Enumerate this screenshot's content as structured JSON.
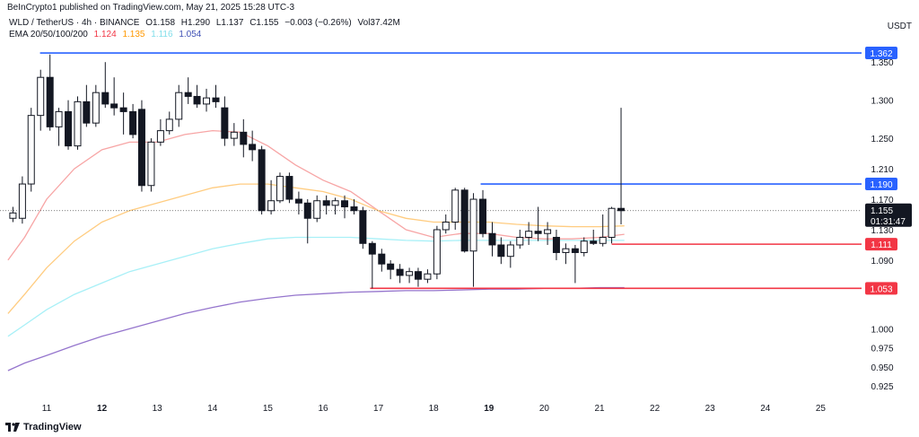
{
  "header": {
    "published": "BeInCrypto1 published on TradingView.com, May 21, 2025 15:28 UTC-3",
    "currency": "USDT"
  },
  "legend": {
    "symbol": "WLD / TetherUS · 4h · BINANCE",
    "open": "O1.158",
    "high": "H1.290",
    "low": "L1.137",
    "close": "C1.155",
    "change": "−0.003 (−0.26%)",
    "volume": "Vol37.42M",
    "ema_label": "EMA 20/50/100/200",
    "ema_values": [
      {
        "value": "1.124",
        "color": "#f23645"
      },
      {
        "value": "1.135",
        "color": "#ff9800"
      },
      {
        "value": "1.116",
        "color": "#80deea"
      },
      {
        "value": "1.054",
        "color": "#3f51b5"
      }
    ]
  },
  "footer": {
    "brand": "TradingView",
    "logo_icon": "tradingview-logo-icon"
  },
  "colors": {
    "up": "#ffffff",
    "down": "#131722",
    "wick": "#131722",
    "ema20": "#f7a5a5",
    "ema50": "#ffcc80",
    "ema100": "#a8f0f7",
    "ema200": "#9575cd",
    "level_blue": "#2962ff",
    "level_red": "#f23645"
  },
  "chart_data": {
    "type": "candlestick",
    "ylim": [
      0.905,
      1.375
    ],
    "price_axis_labels": [
      "1.350",
      "1.300",
      "1.250",
      "1.210",
      "1.170",
      "1.130",
      "1.090",
      "1.050",
      "1.000",
      "0.975",
      "0.950",
      "0.925"
    ],
    "time_axis_labels": [
      {
        "label": "11",
        "x": 11,
        "bold": false
      },
      {
        "label": "12",
        "x": 12,
        "bold": true
      },
      {
        "label": "13",
        "x": 13,
        "bold": false
      },
      {
        "label": "14",
        "x": 14,
        "bold": false
      },
      {
        "label": "15",
        "x": 15,
        "bold": false
      },
      {
        "label": "16",
        "x": 16,
        "bold": false
      },
      {
        "label": "17",
        "x": 17,
        "bold": false
      },
      {
        "label": "18",
        "x": 18,
        "bold": false
      },
      {
        "label": "19",
        "x": 19,
        "bold": true
      },
      {
        "label": "20",
        "x": 20,
        "bold": false
      },
      {
        "label": "21",
        "x": 21,
        "bold": false
      },
      {
        "label": "22",
        "x": 22,
        "bold": false
      },
      {
        "label": "23",
        "x": 23,
        "bold": false
      },
      {
        "label": "24",
        "x": 24,
        "bold": false
      },
      {
        "label": "25",
        "x": 25,
        "bold": false
      }
    ],
    "xlim": [
      10.3,
      25.75
    ],
    "candles": [
      {
        "t": 10.39,
        "o": 1.145,
        "h": 1.16,
        "l": 1.14,
        "c": 1.152
      },
      {
        "t": 10.56,
        "o": 1.145,
        "h": 1.2,
        "l": 1.138,
        "c": 1.19
      },
      {
        "t": 10.72,
        "o": 1.19,
        "h": 1.29,
        "l": 1.18,
        "c": 1.28
      },
      {
        "t": 10.89,
        "o": 1.28,
        "h": 1.34,
        "l": 1.26,
        "c": 1.33
      },
      {
        "t": 11.06,
        "o": 1.33,
        "h": 1.36,
        "l": 1.26,
        "c": 1.265
      },
      {
        "t": 11.22,
        "o": 1.265,
        "h": 1.29,
        "l": 1.24,
        "c": 1.285
      },
      {
        "t": 11.39,
        "o": 1.285,
        "h": 1.3,
        "l": 1.235,
        "c": 1.24
      },
      {
        "t": 11.56,
        "o": 1.24,
        "h": 1.305,
        "l": 1.235,
        "c": 1.298
      },
      {
        "t": 11.72,
        "o": 1.298,
        "h": 1.32,
        "l": 1.265,
        "c": 1.27
      },
      {
        "t": 11.89,
        "o": 1.27,
        "h": 1.32,
        "l": 1.265,
        "c": 1.31
      },
      {
        "t": 12.06,
        "o": 1.31,
        "h": 1.35,
        "l": 1.29,
        "c": 1.295
      },
      {
        "t": 12.22,
        "o": 1.295,
        "h": 1.33,
        "l": 1.28,
        "c": 1.29
      },
      {
        "t": 12.39,
        "o": 1.29,
        "h": 1.31,
        "l": 1.255,
        "c": 1.285
      },
      {
        "t": 12.56,
        "o": 1.285,
        "h": 1.295,
        "l": 1.25,
        "c": 1.255
      },
      {
        "t": 12.72,
        "o": 1.288,
        "h": 1.3,
        "l": 1.18,
        "c": 1.188
      },
      {
        "t": 12.89,
        "o": 1.188,
        "h": 1.25,
        "l": 1.18,
        "c": 1.245
      },
      {
        "t": 13.06,
        "o": 1.245,
        "h": 1.275,
        "l": 1.24,
        "c": 1.26
      },
      {
        "t": 13.22,
        "o": 1.26,
        "h": 1.285,
        "l": 1.255,
        "c": 1.275
      },
      {
        "t": 13.39,
        "o": 1.275,
        "h": 1.32,
        "l": 1.265,
        "c": 1.31
      },
      {
        "t": 13.56,
        "o": 1.31,
        "h": 1.33,
        "l": 1.295,
        "c": 1.305
      },
      {
        "t": 13.72,
        "o": 1.305,
        "h": 1.32,
        "l": 1.29,
        "c": 1.295
      },
      {
        "t": 13.89,
        "o": 1.295,
        "h": 1.315,
        "l": 1.285,
        "c": 1.303
      },
      {
        "t": 14.06,
        "o": 1.303,
        "h": 1.32,
        "l": 1.29,
        "c": 1.298
      },
      {
        "t": 14.22,
        "o": 1.29,
        "h": 1.305,
        "l": 1.24,
        "c": 1.25
      },
      {
        "t": 14.39,
        "o": 1.25,
        "h": 1.27,
        "l": 1.24,
        "c": 1.258
      },
      {
        "t": 14.56,
        "o": 1.258,
        "h": 1.275,
        "l": 1.225,
        "c": 1.242
      },
      {
        "t": 14.72,
        "o": 1.242,
        "h": 1.26,
        "l": 1.22,
        "c": 1.235
      },
      {
        "t": 14.89,
        "o": 1.235,
        "h": 1.24,
        "l": 1.15,
        "c": 1.155
      },
      {
        "t": 15.06,
        "o": 1.155,
        "h": 1.195,
        "l": 1.15,
        "c": 1.168
      },
      {
        "t": 15.22,
        "o": 1.168,
        "h": 1.205,
        "l": 1.165,
        "c": 1.2
      },
      {
        "t": 15.39,
        "o": 1.2,
        "h": 1.205,
        "l": 1.165,
        "c": 1.17
      },
      {
        "t": 15.56,
        "o": 1.17,
        "h": 1.18,
        "l": 1.15,
        "c": 1.165
      },
      {
        "t": 15.72,
        "o": 1.165,
        "h": 1.17,
        "l": 1.112,
        "c": 1.145
      },
      {
        "t": 15.89,
        "o": 1.145,
        "h": 1.175,
        "l": 1.14,
        "c": 1.168
      },
      {
        "t": 16.06,
        "o": 1.168,
        "h": 1.175,
        "l": 1.15,
        "c": 1.162
      },
      {
        "t": 16.22,
        "o": 1.162,
        "h": 1.172,
        "l": 1.15,
        "c": 1.168
      },
      {
        "t": 16.39,
        "o": 1.168,
        "h": 1.175,
        "l": 1.145,
        "c": 1.16
      },
      {
        "t": 16.56,
        "o": 1.16,
        "h": 1.17,
        "l": 1.15,
        "c": 1.155
      },
      {
        "t": 16.72,
        "o": 1.155,
        "h": 1.16,
        "l": 1.105,
        "c": 1.112
      },
      {
        "t": 16.89,
        "o": 1.112,
        "h": 1.115,
        "l": 1.053,
        "c": 1.098
      },
      {
        "t": 17.06,
        "o": 1.098,
        "h": 1.105,
        "l": 1.075,
        "c": 1.085
      },
      {
        "t": 17.22,
        "o": 1.085,
        "h": 1.09,
        "l": 1.065,
        "c": 1.078
      },
      {
        "t": 17.39,
        "o": 1.078,
        "h": 1.085,
        "l": 1.06,
        "c": 1.07
      },
      {
        "t": 17.56,
        "o": 1.07,
        "h": 1.08,
        "l": 1.06,
        "c": 1.075
      },
      {
        "t": 17.72,
        "o": 1.075,
        "h": 1.08,
        "l": 1.055,
        "c": 1.065
      },
      {
        "t": 17.89,
        "o": 1.065,
        "h": 1.078,
        "l": 1.06,
        "c": 1.072
      },
      {
        "t": 18.06,
        "o": 1.072,
        "h": 1.135,
        "l": 1.065,
        "c": 1.13
      },
      {
        "t": 18.22,
        "o": 1.13,
        "h": 1.15,
        "l": 1.125,
        "c": 1.14
      },
      {
        "t": 18.39,
        "o": 1.14,
        "h": 1.185,
        "l": 1.13,
        "c": 1.182
      },
      {
        "t": 18.56,
        "o": 1.182,
        "h": 1.185,
        "l": 1.1,
        "c": 1.102
      },
      {
        "t": 18.72,
        "o": 1.102,
        "h": 1.178,
        "l": 1.055,
        "c": 1.17
      },
      {
        "t": 18.89,
        "o": 1.17,
        "h": 1.182,
        "l": 1.12,
        "c": 1.125
      },
      {
        "t": 19.06,
        "o": 1.125,
        "h": 1.14,
        "l": 1.095,
        "c": 1.11
      },
      {
        "t": 19.22,
        "o": 1.11,
        "h": 1.12,
        "l": 1.085,
        "c": 1.095
      },
      {
        "t": 19.39,
        "o": 1.095,
        "h": 1.115,
        "l": 1.08,
        "c": 1.11
      },
      {
        "t": 19.56,
        "o": 1.11,
        "h": 1.13,
        "l": 1.105,
        "c": 1.12
      },
      {
        "t": 19.72,
        "o": 1.12,
        "h": 1.14,
        "l": 1.11,
        "c": 1.128
      },
      {
        "t": 19.89,
        "o": 1.128,
        "h": 1.16,
        "l": 1.115,
        "c": 1.125
      },
      {
        "t": 20.06,
        "o": 1.125,
        "h": 1.14,
        "l": 1.11,
        "c": 1.13
      },
      {
        "t": 20.22,
        "o": 1.12,
        "h": 1.13,
        "l": 1.09,
        "c": 1.1
      },
      {
        "t": 20.39,
        "o": 1.1,
        "h": 1.112,
        "l": 1.085,
        "c": 1.105
      },
      {
        "t": 20.56,
        "o": 1.105,
        "h": 1.11,
        "l": 1.06,
        "c": 1.1
      },
      {
        "t": 20.72,
        "o": 1.1,
        "h": 1.12,
        "l": 1.095,
        "c": 1.115
      },
      {
        "t": 20.89,
        "o": 1.115,
        "h": 1.13,
        "l": 1.11,
        "c": 1.112
      },
      {
        "t": 21.06,
        "o": 1.112,
        "h": 1.15,
        "l": 1.108,
        "c": 1.12
      },
      {
        "t": 21.22,
        "o": 1.12,
        "h": 1.16,
        "l": 1.112,
        "c": 1.158
      },
      {
        "t": 21.39,
        "o": 1.158,
        "h": 1.29,
        "l": 1.137,
        "c": 1.155
      }
    ],
    "ema_lines": [
      {
        "name": "EMA 20",
        "points": [
          [
            10.3,
            1.09
          ],
          [
            10.6,
            1.12
          ],
          [
            11.0,
            1.17
          ],
          [
            11.5,
            1.21
          ],
          [
            12.0,
            1.235
          ],
          [
            12.5,
            1.245
          ],
          [
            13.0,
            1.245
          ],
          [
            13.5,
            1.255
          ],
          [
            14.0,
            1.26
          ],
          [
            14.5,
            1.258
          ],
          [
            15.0,
            1.24
          ],
          [
            15.5,
            1.215
          ],
          [
            16.0,
            1.195
          ],
          [
            16.5,
            1.18
          ],
          [
            17.0,
            1.155
          ],
          [
            17.5,
            1.13
          ],
          [
            18.0,
            1.12
          ],
          [
            18.5,
            1.125
          ],
          [
            19.0,
            1.125
          ],
          [
            19.5,
            1.12
          ],
          [
            20.0,
            1.118
          ],
          [
            20.5,
            1.118
          ],
          [
            21.0,
            1.12
          ],
          [
            21.45,
            1.124
          ]
        ]
      },
      {
        "name": "EMA 50",
        "points": [
          [
            10.3,
            1.02
          ],
          [
            10.6,
            1.045
          ],
          [
            11.0,
            1.08
          ],
          [
            11.5,
            1.115
          ],
          [
            12.0,
            1.14
          ],
          [
            12.5,
            1.155
          ],
          [
            13.0,
            1.165
          ],
          [
            13.5,
            1.175
          ],
          [
            14.0,
            1.185
          ],
          [
            14.5,
            1.19
          ],
          [
            15.0,
            1.19
          ],
          [
            15.5,
            1.185
          ],
          [
            16.0,
            1.18
          ],
          [
            16.5,
            1.17
          ],
          [
            17.0,
            1.155
          ],
          [
            17.5,
            1.145
          ],
          [
            18.0,
            1.14
          ],
          [
            18.5,
            1.14
          ],
          [
            19.0,
            1.14
          ],
          [
            19.5,
            1.137
          ],
          [
            20.0,
            1.135
          ],
          [
            20.5,
            1.134
          ],
          [
            21.0,
            1.134
          ],
          [
            21.45,
            1.135
          ]
        ]
      },
      {
        "name": "EMA 100",
        "points": [
          [
            10.3,
            0.99
          ],
          [
            10.6,
            1.005
          ],
          [
            11.0,
            1.025
          ],
          [
            11.5,
            1.045
          ],
          [
            12.0,
            1.06
          ],
          [
            12.5,
            1.075
          ],
          [
            13.0,
            1.085
          ],
          [
            13.5,
            1.095
          ],
          [
            14.0,
            1.105
          ],
          [
            14.5,
            1.112
          ],
          [
            15.0,
            1.118
          ],
          [
            15.5,
            1.12
          ],
          [
            16.0,
            1.12
          ],
          [
            16.5,
            1.12
          ],
          [
            17.0,
            1.118
          ],
          [
            17.5,
            1.116
          ],
          [
            18.0,
            1.115
          ],
          [
            18.5,
            1.116
          ],
          [
            19.0,
            1.116
          ],
          [
            19.5,
            1.116
          ],
          [
            20.0,
            1.116
          ],
          [
            20.5,
            1.116
          ],
          [
            21.0,
            1.116
          ],
          [
            21.45,
            1.116
          ]
        ]
      },
      {
        "name": "EMA 200",
        "points": [
          [
            10.3,
            0.945
          ],
          [
            10.6,
            0.955
          ],
          [
            11.0,
            0.965
          ],
          [
            11.5,
            0.978
          ],
          [
            12.0,
            0.99
          ],
          [
            12.5,
            1.0
          ],
          [
            13.0,
            1.01
          ],
          [
            13.5,
            1.02
          ],
          [
            14.0,
            1.028
          ],
          [
            14.5,
            1.035
          ],
          [
            15.0,
            1.04
          ],
          [
            15.5,
            1.044
          ],
          [
            16.0,
            1.046
          ],
          [
            16.5,
            1.048
          ],
          [
            17.0,
            1.049
          ],
          [
            17.5,
            1.05
          ],
          [
            18.0,
            1.05
          ],
          [
            18.5,
            1.051
          ],
          [
            19.0,
            1.052
          ],
          [
            19.5,
            1.052
          ],
          [
            20.0,
            1.053
          ],
          [
            20.5,
            1.053
          ],
          [
            21.0,
            1.054
          ],
          [
            21.45,
            1.054
          ]
        ]
      }
    ],
    "levels": [
      {
        "price": 1.362,
        "label": "1.362",
        "color": "blue",
        "x_start": 10.88
      },
      {
        "price": 1.19,
        "label": "1.190",
        "color": "blue",
        "x_start": 18.85
      },
      {
        "price": 1.111,
        "label": "1.111",
        "color": "red",
        "x_start": 21.22
      },
      {
        "price": 1.053,
        "label": "1.053",
        "color": "red",
        "x_start": 16.85
      }
    ],
    "current_price": {
      "price": 1.155,
      "label": "1.155",
      "countdown": "01:31:47"
    }
  }
}
